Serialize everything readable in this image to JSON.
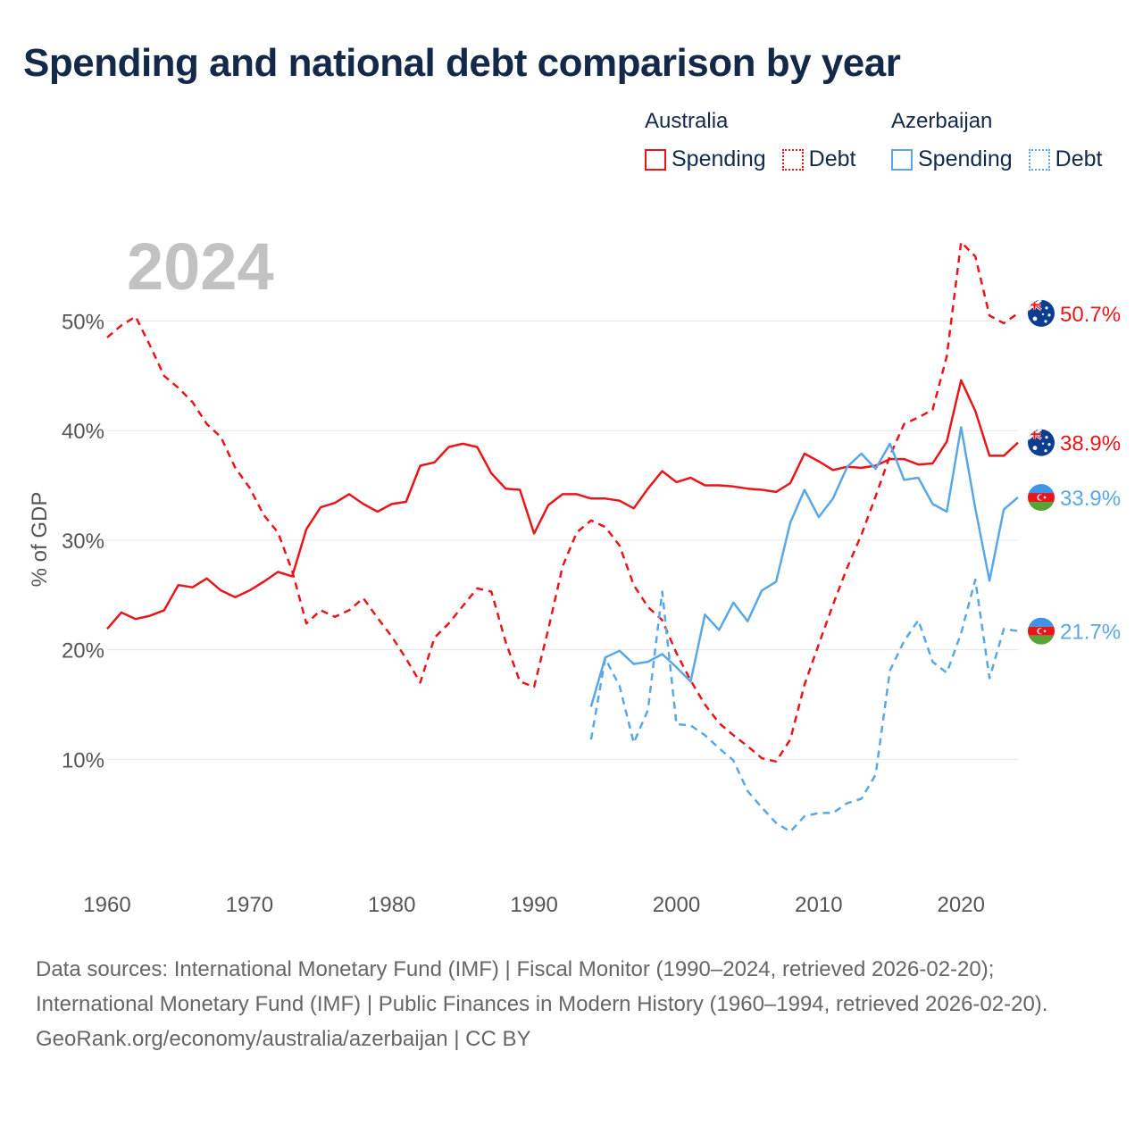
{
  "title": "Spending and national debt comparison by year",
  "year_label": "2024",
  "legend": {
    "australia": {
      "country": "Australia",
      "spending": "Spending",
      "debt": "Debt",
      "color": "#e8161b"
    },
    "azerbaijan": {
      "country": "Azerbaijan",
      "spending": "Spending",
      "debt": "Debt",
      "color": "#5aa7e6"
    }
  },
  "footer": {
    "sources": "Data sources: International Monetary Fund (IMF) | Fiscal Monitor (1990–2024, retrieved 2026-02-20); International Monetary Fund (IMF) | Public Finances in Modern History (1960–1994, retrieved 2026-02-20).",
    "credit": "GeoRank.org/economy/australia/azerbaijan | CC BY"
  },
  "chart_data": {
    "type": "line",
    "ylabel": "% of GDP",
    "xlim": [
      1960,
      2024
    ],
    "ylim": [
      0,
      58
    ],
    "x_ticks": [
      1960,
      1970,
      1980,
      1990,
      2000,
      2010,
      2020
    ],
    "y_ticks": [
      10,
      20,
      30,
      40,
      50
    ],
    "y_tick_labels": [
      "10%",
      "20%",
      "30%",
      "40%",
      "50%"
    ],
    "series": [
      {
        "name": "Australia Debt",
        "country": "Australia",
        "kind": "Debt",
        "color": "#e8161b",
        "dashed": true,
        "start_year": 1960,
        "values": [
          48.5,
          49.6,
          50.4,
          47.8,
          45.0,
          43.9,
          42.6,
          40.6,
          39.4,
          36.6,
          34.8,
          32.3,
          30.7,
          27.2,
          22.4,
          23.6,
          23.0,
          23.6,
          24.7,
          22.9,
          21.2,
          19.2,
          17.0,
          21.1,
          22.4,
          24.0,
          25.6,
          25.3,
          20.7,
          17.1,
          16.6,
          21.9,
          27.6,
          30.7,
          31.8,
          31.2,
          29.5,
          25.9,
          23.9,
          22.7,
          19.7,
          17.2,
          15.0,
          13.3,
          12.2,
          11.2,
          10.1,
          9.8,
          11.8,
          16.8,
          20.5,
          24.1,
          27.5,
          30.5,
          34.0,
          37.7,
          40.6,
          41.2,
          41.9,
          46.8,
          57.2,
          55.9,
          50.5,
          49.8,
          50.7
        ]
      },
      {
        "name": "Australia Spending",
        "country": "Australia",
        "kind": "Spending",
        "color": "#e8161b",
        "dashed": false,
        "start_year": 1960,
        "values": [
          21.9,
          23.4,
          22.8,
          23.1,
          23.6,
          25.9,
          25.7,
          26.5,
          25.4,
          24.8,
          25.4,
          26.2,
          27.1,
          26.7,
          31.0,
          33.0,
          33.4,
          34.2,
          33.3,
          32.6,
          33.3,
          33.5,
          36.8,
          37.1,
          38.5,
          38.8,
          38.5,
          36.1,
          34.7,
          34.6,
          30.6,
          33.2,
          34.2,
          34.2,
          33.8,
          33.8,
          33.6,
          32.9,
          34.7,
          36.3,
          35.3,
          35.7,
          35.0,
          35.0,
          34.9,
          34.7,
          34.6,
          34.4,
          35.2,
          37.9,
          37.2,
          36.4,
          36.7,
          36.6,
          36.8,
          37.4,
          37.4,
          36.9,
          37.0,
          39.0,
          44.6,
          41.8,
          37.7,
          37.7,
          38.9
        ]
      },
      {
        "name": "Azerbaijan Spending",
        "country": "Azerbaijan",
        "kind": "Spending",
        "color": "#5aa7e6",
        "dashed": false,
        "start_year": 1994,
        "values": [
          14.8,
          19.3,
          19.9,
          18.7,
          18.9,
          19.6,
          18.4,
          17.1,
          23.2,
          21.8,
          24.3,
          22.6,
          25.4,
          26.2,
          31.6,
          34.6,
          32.1,
          33.8,
          36.7,
          37.9,
          36.5,
          38.8,
          35.5,
          35.7,
          33.3,
          32.6,
          40.3,
          32.9,
          26.3,
          32.8,
          33.9
        ]
      },
      {
        "name": "Azerbaijan Debt",
        "country": "Azerbaijan",
        "kind": "Debt",
        "color": "#5aa7e6",
        "dashed": true,
        "start_year": 1994,
        "values": [
          11.8,
          19.2,
          16.7,
          11.5,
          14.5,
          25.3,
          13.2,
          13.1,
          12.2,
          11.0,
          9.9,
          7.1,
          5.6,
          4.2,
          3.4,
          4.8,
          5.1,
          5.1,
          6.0,
          6.4,
          8.6,
          18.1,
          20.8,
          22.7,
          18.9,
          17.9,
          21.5,
          26.4,
          17.4,
          21.9,
          21.7
        ]
      }
    ],
    "end_labels": [
      {
        "text": "50.7%",
        "value": 50.7,
        "color": "#e8161b",
        "flag": "australia"
      },
      {
        "text": "38.9%",
        "value": 38.9,
        "color": "#e8161b",
        "flag": "australia"
      },
      {
        "text": "33.9%",
        "value": 33.9,
        "color": "#5aa7e6",
        "flag": "azerbaijan"
      },
      {
        "text": "21.7%",
        "value": 21.7,
        "color": "#5aa7e6",
        "flag": "azerbaijan"
      }
    ]
  }
}
